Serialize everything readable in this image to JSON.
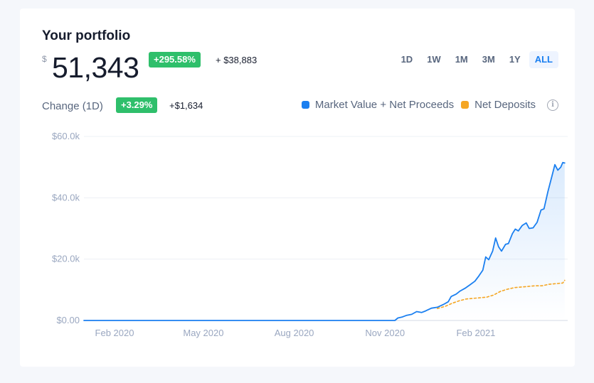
{
  "header": {
    "title": "Your portfolio",
    "currency_symbol": "$",
    "value": "51,343",
    "total_change_pct": "+295.58%",
    "total_change_abs": "+ $38,883"
  },
  "ranges": [
    {
      "label": "1D",
      "active": false
    },
    {
      "label": "1W",
      "active": false
    },
    {
      "label": "1M",
      "active": false
    },
    {
      "label": "3M",
      "active": false
    },
    {
      "label": "1Y",
      "active": false
    },
    {
      "label": "ALL",
      "active": true
    }
  ],
  "change": {
    "label": "Change (1D)",
    "pct": "+3.29%",
    "abs": "+$1,634"
  },
  "legend": {
    "series_a": "Market Value + Net Proceeds",
    "series_b": "Net Deposits",
    "info_icon": "info-icon"
  },
  "colors": {
    "series_a": "#1a7ff0",
    "series_b": "#f5a623",
    "positive": "#2fbf6b"
  },
  "chart_data": {
    "type": "line",
    "x_axis": {
      "min": "2020-01-01",
      "max": "2021-05-05",
      "ticks": [
        {
          "date": "2020-02-01",
          "label": "Feb 2020"
        },
        {
          "date": "2020-05-01",
          "label": "May 2020"
        },
        {
          "date": "2020-08-01",
          "label": "Aug 2020"
        },
        {
          "date": "2020-11-01",
          "label": "Nov 2020"
        },
        {
          "date": "2021-02-01",
          "label": "Feb 2021"
        }
      ]
    },
    "y_axis": {
      "min": 0,
      "max": 60000,
      "ticks": [
        {
          "value": 0,
          "label": "$0.00"
        },
        {
          "value": 20000,
          "label": "$20.0k"
        },
        {
          "value": 40000,
          "label": "$40.0k"
        },
        {
          "value": 60000,
          "label": "$60.0k"
        }
      ]
    },
    "grid": true,
    "legend_position": "top-right",
    "series": [
      {
        "name": "Market Value + Net Proceeds",
        "color": "#1a7ff0",
        "style": "solid",
        "fill": true,
        "points": [
          [
            "2020-01-01",
            0
          ],
          [
            "2020-11-11",
            0
          ],
          [
            "2020-11-14",
            800
          ],
          [
            "2020-11-18",
            1100
          ],
          [
            "2020-11-23",
            1700
          ],
          [
            "2020-11-28",
            2000
          ],
          [
            "2020-12-03",
            2900
          ],
          [
            "2020-12-08",
            2600
          ],
          [
            "2020-12-12",
            3100
          ],
          [
            "2020-12-18",
            4000
          ],
          [
            "2020-12-24",
            4300
          ],
          [
            "2020-12-30",
            5200
          ],
          [
            "2021-01-04",
            6100
          ],
          [
            "2021-01-07",
            7800
          ],
          [
            "2021-01-12",
            8600
          ],
          [
            "2021-01-16",
            9600
          ],
          [
            "2021-01-21",
            10500
          ],
          [
            "2021-01-26",
            11600
          ],
          [
            "2021-01-31",
            12800
          ],
          [
            "2021-02-04",
            14500
          ],
          [
            "2021-02-08",
            16400
          ],
          [
            "2021-02-11",
            20700
          ],
          [
            "2021-02-14",
            19800
          ],
          [
            "2021-02-18",
            22600
          ],
          [
            "2021-02-21",
            26900
          ],
          [
            "2021-02-24",
            24000
          ],
          [
            "2021-02-27",
            22600
          ],
          [
            "2021-03-03",
            24800
          ],
          [
            "2021-03-06",
            25100
          ],
          [
            "2021-03-10",
            28300
          ],
          [
            "2021-03-13",
            29800
          ],
          [
            "2021-03-16",
            29200
          ],
          [
            "2021-03-20",
            31000
          ],
          [
            "2021-03-24",
            31800
          ],
          [
            "2021-03-27",
            30000
          ],
          [
            "2021-03-31",
            30200
          ],
          [
            "2021-04-04",
            32000
          ],
          [
            "2021-04-08",
            36000
          ],
          [
            "2021-04-11",
            36400
          ],
          [
            "2021-04-15",
            42000
          ],
          [
            "2021-04-19",
            47000
          ],
          [
            "2021-04-22",
            50800
          ],
          [
            "2021-04-25",
            49000
          ],
          [
            "2021-04-28",
            50000
          ],
          [
            "2021-04-30",
            51500
          ],
          [
            "2021-05-02",
            51343
          ]
        ]
      },
      {
        "name": "Net Deposits",
        "color": "#f5a623",
        "style": "dashed",
        "fill": false,
        "points": [
          [
            "2020-12-24",
            3900
          ],
          [
            "2021-01-01",
            4600
          ],
          [
            "2021-01-08",
            5600
          ],
          [
            "2021-01-15",
            6400
          ],
          [
            "2021-01-22",
            7000
          ],
          [
            "2021-01-29",
            7200
          ],
          [
            "2021-02-05",
            7400
          ],
          [
            "2021-02-12",
            7600
          ],
          [
            "2021-02-19",
            8300
          ],
          [
            "2021-02-26",
            9500
          ],
          [
            "2021-03-05",
            10200
          ],
          [
            "2021-03-12",
            10700
          ],
          [
            "2021-03-19",
            10900
          ],
          [
            "2021-03-26",
            11100
          ],
          [
            "2021-04-02",
            11300
          ],
          [
            "2021-04-09",
            11300
          ],
          [
            "2021-04-16",
            11800
          ],
          [
            "2021-04-23",
            12000
          ],
          [
            "2021-04-30",
            12200
          ],
          [
            "2021-05-02",
            13100
          ]
        ]
      }
    ]
  }
}
